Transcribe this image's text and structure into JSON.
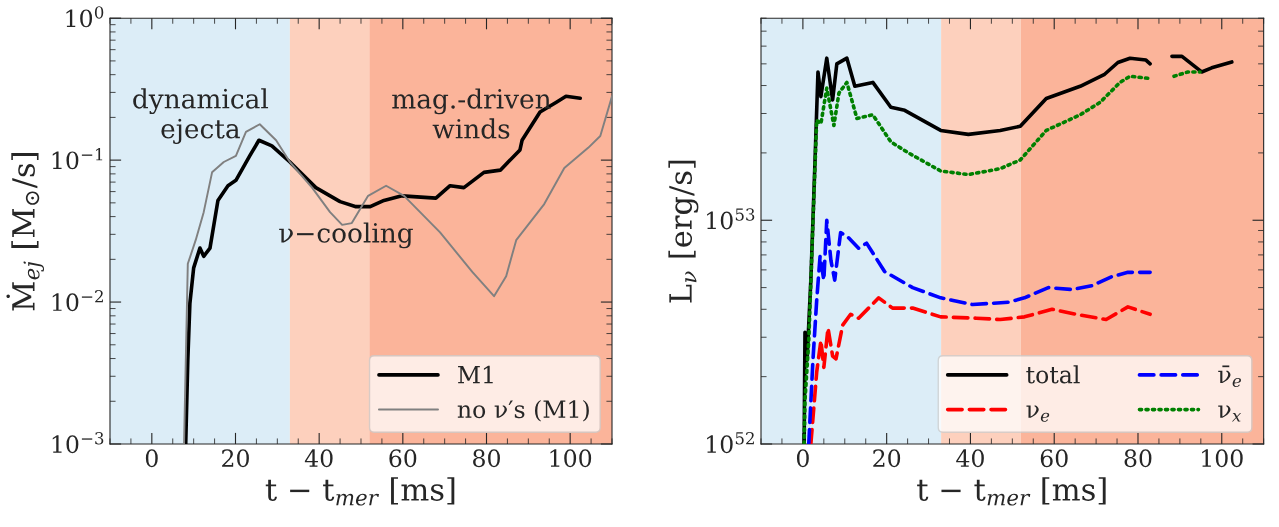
{
  "chart_data": [
    {
      "type": "line",
      "xlabel": "t − t$_{mer}$ [ms]",
      "ylabel": "Ṁ$_{ej}$ [M$_{⊙}$/s]",
      "log": true,
      "grid": false,
      "legend": "bottom right",
      "xlim": [
        -10,
        110
      ],
      "xticks": [
        0,
        20,
        40,
        60,
        80,
        100
      ],
      "ylim": [
        0.001,
        1
      ],
      "yticks": [
        {
          "value": 0.001,
          "label": "10$^{−3}$"
        },
        {
          "value": 0.01,
          "label": "10$^{−2}$"
        },
        {
          "value": 0.1,
          "label": "10$^{−1}$"
        },
        {
          "value": 1,
          "label": "10$^{0}$"
        }
      ],
      "bands": [
        {
          "axis": "x",
          "from": -10,
          "to": 33,
          "color": "#dcedf7"
        },
        {
          "axis": "x",
          "from": 33,
          "to": 52,
          "color": "#fdd0bd"
        },
        {
          "axis": "x",
          "from": 52,
          "to": 110,
          "color": "#fbb49a"
        }
      ],
      "annotations": [
        "dynamical\nejecta",
        "ν−cooling",
        "mag.-driven\nwinds"
      ],
      "series": [
        {
          "name": "M1",
          "color": "#000000",
          "line_style": "solid",
          "x": [
            8.1,
            8.6,
            9.1,
            10.0,
            11.5,
            12.4,
            13.9,
            15.8,
            18.2,
            20.1,
            23.4,
            25.6,
            28.7,
            33,
            39.2,
            45,
            48.8,
            52.2,
            55.5,
            59.8,
            67.9,
            71.3,
            74.6,
            79.4,
            83.3,
            88,
            88.5,
            92.8,
            96.7,
            99,
            102.4
          ],
          "values": [
            0.001,
            0.0039,
            0.0098,
            0.0174,
            0.024,
            0.021,
            0.024,
            0.052,
            0.066,
            0.072,
            0.107,
            0.138,
            0.126,
            0.097,
            0.064,
            0.051,
            0.047,
            0.047,
            0.052,
            0.056,
            0.054,
            0.066,
            0.064,
            0.082,
            0.085,
            0.118,
            0.138,
            0.218,
            0.256,
            0.282,
            0.273
          ]
        },
        {
          "name": "no ν′s (M1)",
          "color": "#808080",
          "line_style": "solid",
          "x": [
            7.7,
            8.6,
            10.5,
            12.4,
            14.4,
            17.2,
            20.1,
            22.5,
            25.8,
            29.7,
            33,
            38.3,
            42.6,
            45.5,
            47.8,
            51.7,
            56,
            60.3,
            68.9,
            76.6,
            81.8,
            84.7,
            87.1,
            93.8,
            98.6,
            104.3,
            107.2,
            110
          ],
          "values": [
            0.001,
            0.0186,
            0.0274,
            0.043,
            0.082,
            0.097,
            0.107,
            0.158,
            0.179,
            0.138,
            0.097,
            0.064,
            0.043,
            0.035,
            0.036,
            0.056,
            0.066,
            0.056,
            0.031,
            0.0163,
            0.011,
            0.0152,
            0.0273,
            0.049,
            0.088,
            0.122,
            0.148,
            0.282
          ]
        }
      ]
    },
    {
      "type": "line",
      "xlabel": "t − t$_{mer}$ [ms]",
      "ylabel": "L$_{ν}$ [erg/s]",
      "log": true,
      "grid": false,
      "legend": "bottom right",
      "xlim": [
        -10,
        110
      ],
      "xticks": [
        0,
        20,
        40,
        60,
        80,
        100
      ],
      "ylim": [
        1e+52,
        8e+53
      ],
      "yticks": [
        {
          "value": 1e+52,
          "label": "10$^{52}$"
        },
        {
          "value": 1e+53,
          "label": "10$^{53}$"
        }
      ],
      "bands": [
        {
          "axis": "x",
          "from": -10,
          "to": 33,
          "color": "#dcedf7"
        },
        {
          "axis": "x",
          "from": 33,
          "to": 52,
          "color": "#fdd0bd"
        },
        {
          "axis": "x",
          "from": 52,
          "to": 110,
          "color": "#fbb49a"
        }
      ],
      "series": [
        {
          "name": "total",
          "color": "#000000",
          "line_style": "solid",
          "x": [
            0.3,
            0.5,
            1.0,
            1.9,
            2.9,
            3.6,
            4.3,
            5.7,
            7.1,
            8.1,
            10.5,
            12.4,
            16.7,
            21,
            24.3,
            32.9,
            39.5,
            47.1,
            51.9,
            58.1,
            66.2,
            71.9,
            75.2,
            78.1,
            81.9,
            82.9,
            85.5,
            88.1,
            90.5,
            95.2,
            97.6,
            102.4
          ],
          "values": [
            1e+52,
            3.16e+52,
            2.37e+52,
            5.4e+52,
            1.86e+53,
            4.6e+53,
            3.57e+53,
            5.3e+53,
            3.45e+53,
            5e+53,
            5.3e+53,
            3.97e+53,
            4.13e+53,
            3.2e+53,
            3.1e+53,
            2.52e+53,
            2.42e+53,
            2.52e+53,
            2.63e+53,
            3.5e+53,
            3.97e+53,
            4.47e+53,
            5.07e+53,
            5.3e+53,
            5.2e+53,
            5e+53,
            null,
            5.4e+53,
            5.4e+53,
            4.6e+53,
            4.8e+53,
            5.1e+53
          ]
        },
        {
          "name": "ν$_{e}$",
          "color": "#ff0000",
          "line_style": "dashed",
          "x": [
            1.9,
            3.3,
            4.3,
            5.0,
            6.0,
            7.1,
            7.9,
            9.5,
            11.4,
            13.3,
            18.1,
            21.4,
            26.2,
            32.9,
            41.4,
            47.1,
            52.9,
            59.5,
            65.2,
            72.4,
            77.6,
            82.9
          ],
          "values": [
            1e+52,
            2.1e+52,
            2.9e+52,
            2.2e+52,
            3.3e+52,
            2.47e+52,
            2.4e+52,
            3.4e+52,
            3.8e+52,
            3.65e+52,
            4.5e+52,
            4.05e+52,
            4.05e+52,
            3.7e+52,
            3.65e+52,
            3.6e+52,
            3.7e+52,
            4e+52,
            3.8e+52,
            3.6e+52,
            4.1e+52,
            3.8e+52
          ]
        },
        {
          "name": "ν̄$_{e}$",
          "color": "#0000ff",
          "line_style": "dashed",
          "x": [
            1.4,
            2.4,
            3.3,
            4.1,
            5.0,
            5.7,
            6.7,
            7.6,
            9.0,
            10.5,
            13.3,
            15.2,
            19.5,
            26.2,
            32.9,
            40.5,
            49,
            52.9,
            58.6,
            64.3,
            69,
            73.8,
            77.6,
            82.9
          ],
          "values": [
            1e+52,
            2.37e+52,
            4.4e+52,
            6.9e+52,
            5.4e+52,
            1e+53,
            6.6e+52,
            5.4e+52,
            8.8e+52,
            8.5e+52,
            7.5e+52,
            7.9e+52,
            5.9e+52,
            5e+52,
            4.5e+52,
            4.2e+52,
            4.3e+52,
            4.5e+52,
            5e+52,
            4.9e+52,
            5.1e+52,
            5.6e+52,
            5.85e+52,
            5.85e+52
          ]
        },
        {
          "name": "ν$_{x}$",
          "color": "#008000",
          "line_style": "dotted",
          "x": [
            0.3,
            0.5,
            1.4,
            2.6,
            3.3,
            4.3,
            5.7,
            7.4,
            8.6,
            10.5,
            12.9,
            16.7,
            21,
            25.2,
            32.9,
            39.5,
            47.1,
            51.9,
            58.1,
            66.2,
            71,
            75.7,
            78.1,
            82.9,
            85.5,
            88.6,
            91.9,
            94.8
          ],
          "values": [
            1e+52,
            1.57e+52,
            2.9e+52,
            1.23e+53,
            2.8e+53,
            2.7e+53,
            3.9e+53,
            2.65e+53,
            3.7e+53,
            4.13e+53,
            2.85e+53,
            2.96e+53,
            2.24e+53,
            2e+53,
            1.66e+53,
            1.6e+53,
            1.7e+53,
            1.86e+53,
            2.52e+53,
            2.96e+53,
            3.37e+53,
            4.13e+53,
            4.4e+53,
            4.3e+53,
            null,
            4.4e+53,
            4.6e+53,
            4.6e+53
          ]
        }
      ]
    }
  ]
}
